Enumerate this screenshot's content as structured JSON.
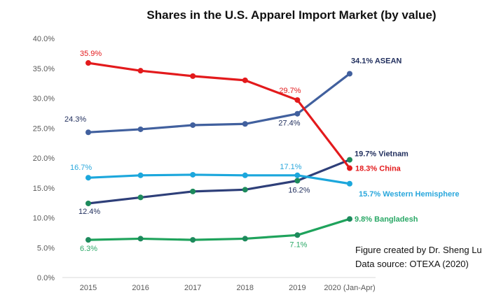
{
  "chart_data": {
    "type": "line",
    "title": "Shares in the U.S. Apparel Import Market (by value)",
    "xlabel": "",
    "ylabel": "",
    "categories": [
      "2015",
      "2016",
      "2017",
      "2018",
      "2019",
      "2020 (Jan-Apr)"
    ],
    "ylim": [
      0,
      40
    ],
    "y_ticks": [
      "0.0%",
      "5.0%",
      "10.0%",
      "15.0%",
      "20.0%",
      "25.0%",
      "30.0%",
      "35.0%",
      "40.0%"
    ],
    "y_tick_values": [
      0,
      5,
      10,
      15,
      20,
      25,
      30,
      35,
      40
    ],
    "grid": false,
    "legend": "none (series labeled at line ends)",
    "series": [
      {
        "name": "China",
        "color": "#e31a1c",
        "marker_color": "#e31a1c",
        "values": [
          35.9,
          34.6,
          33.7,
          33.0,
          29.7,
          18.3
        ],
        "labels": [
          {
            "index": 0,
            "text": "35.9%"
          },
          {
            "index": 4,
            "text": "29.7%"
          },
          {
            "index": 5,
            "text": "18.3% China",
            "end": true
          }
        ]
      },
      {
        "name": "ASEAN",
        "color": "#41609e",
        "marker_color": "#41609e",
        "values": [
          24.3,
          24.8,
          25.5,
          25.7,
          27.4,
          34.1
        ],
        "labels": [
          {
            "index": 0,
            "text": "24.3%"
          },
          {
            "index": 4,
            "text": "27.4%"
          },
          {
            "index": 5,
            "text": "34.1% ASEAN",
            "end": true
          }
        ]
      },
      {
        "name": "Western Hemisphere",
        "color": "#1ca7dc",
        "marker_color": "#1ca7dc",
        "values": [
          16.7,
          17.1,
          17.2,
          17.1,
          17.1,
          15.7
        ],
        "labels": [
          {
            "index": 0,
            "text": "16.7%"
          },
          {
            "index": 4,
            "text": "17.1%"
          },
          {
            "index": 5,
            "text": "15.7% Western Hemisphere",
            "end": true
          }
        ]
      },
      {
        "name": "Vietnam",
        "color": "#2e3f79",
        "marker_color": "#1d8a5c",
        "values": [
          12.4,
          13.4,
          14.4,
          14.7,
          16.2,
          19.7
        ],
        "labels": [
          {
            "index": 0,
            "text": "12.4%"
          },
          {
            "index": 4,
            "text": "16.2%"
          },
          {
            "index": 5,
            "text": "19.7% Vietnam",
            "end": true
          }
        ]
      },
      {
        "name": "Bangladesh",
        "color": "#1fa35c",
        "marker_color": "#1d8a5c",
        "values": [
          6.3,
          6.5,
          6.3,
          6.5,
          7.1,
          9.8
        ],
        "labels": [
          {
            "index": 0,
            "text": "6.3%"
          },
          {
            "index": 4,
            "text": "7.1%"
          },
          {
            "index": 5,
            "text": "9.8% Bangladesh",
            "end": true
          }
        ]
      }
    ],
    "annotations": [
      "Figure created by Dr. Sheng Lu",
      "Data source: OTEXA (2020)"
    ]
  }
}
